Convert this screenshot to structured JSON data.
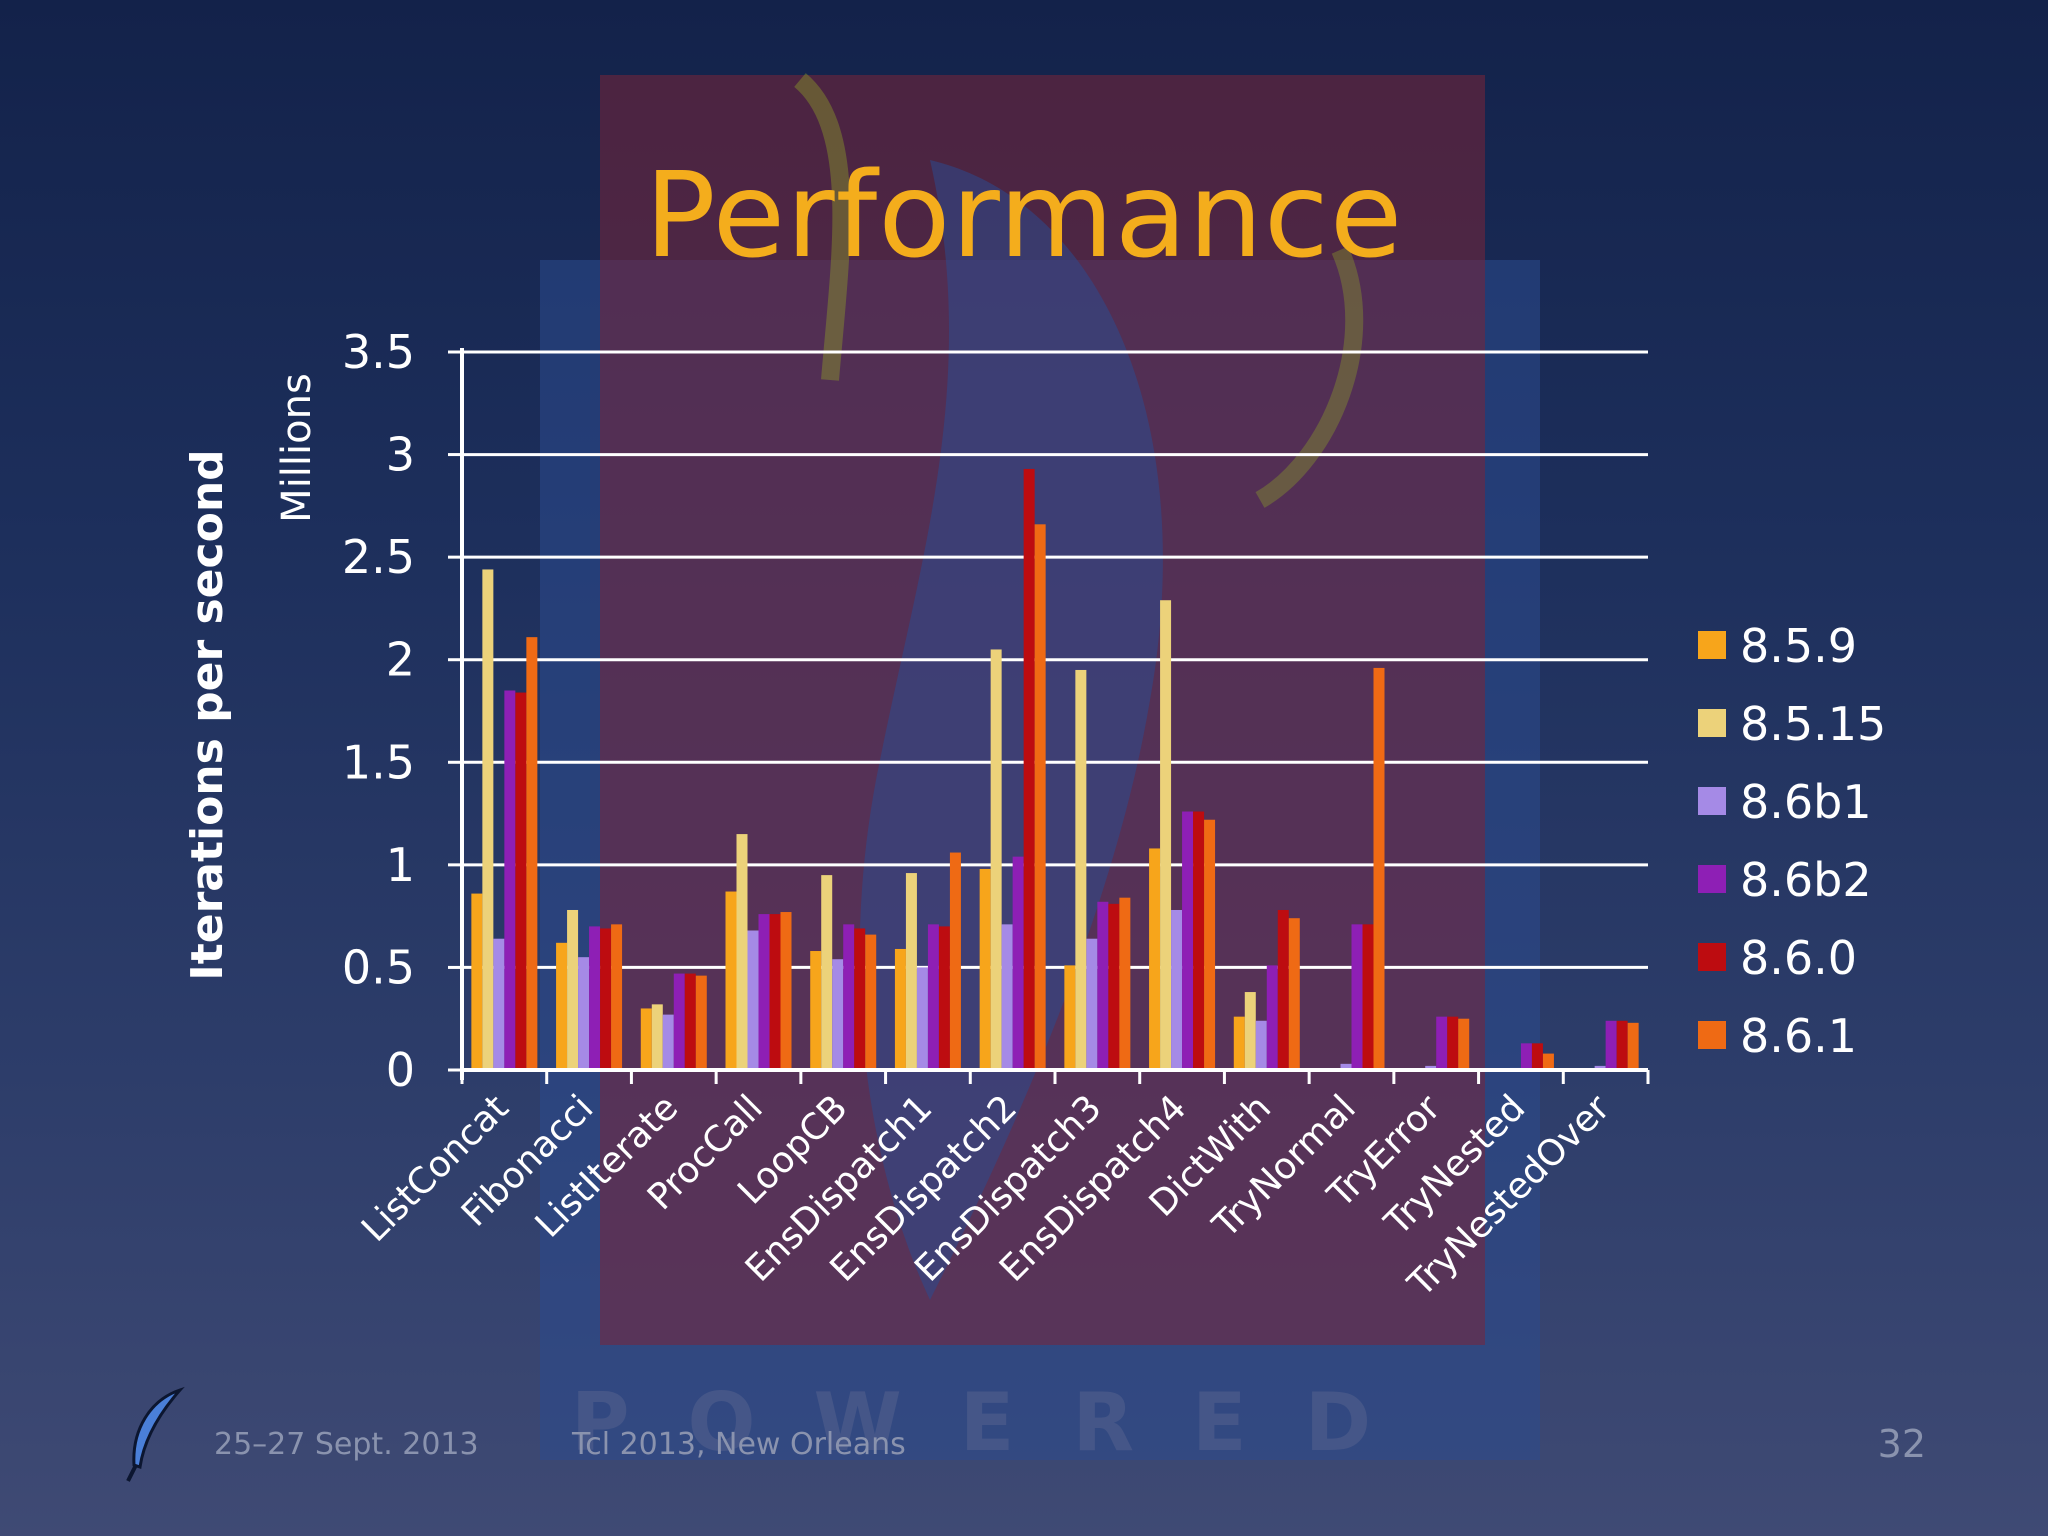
{
  "slide": {
    "title": "Performance",
    "footer_date": "25–27 Sept. 2013",
    "footer_event": "Tcl 2013, New Orleans",
    "slide_number": "32",
    "watermark_text": "POWERED",
    "icon": "feather-icon"
  },
  "colors": {
    "title": "#f4ad1c",
    "series": [
      "#f7a51b",
      "#ecd27a",
      "#a58ae6",
      "#8e1fb5",
      "#bd0c10",
      "#ef6a14"
    ],
    "gridline": "#ffffff"
  },
  "chart_data": {
    "type": "bar",
    "title": "",
    "xlabel": "",
    "ylabel": "Iterations per second",
    "yunits": "Millions",
    "ylim": [
      0,
      3.5
    ],
    "yticks": [
      "0",
      "0.5",
      "1",
      "1.5",
      "2",
      "2.5",
      "3",
      "3.5"
    ],
    "grid": true,
    "legend_position": "right",
    "categories": [
      "ListConcat",
      "Fibonacci",
      "ListIterate",
      "ProcCall",
      "LoopCB",
      "EnsDispatch1",
      "EnsDispatch2",
      "EnsDispatch3",
      "EnsDispatch4",
      "DictWith",
      "TryNormal",
      "TryError",
      "TryNested",
      "TryNestedOver"
    ],
    "series": [
      {
        "name": "8.5.9",
        "values": [
          0.86,
          0.62,
          0.3,
          0.87,
          0.58,
          0.59,
          0.98,
          0.51,
          1.08,
          0.26,
          0,
          0,
          0,
          0
        ]
      },
      {
        "name": "8.5.15",
        "values": [
          2.44,
          0.78,
          0.32,
          1.15,
          0.95,
          0.96,
          2.05,
          1.95,
          2.29,
          0.38,
          0,
          0,
          0,
          0
        ]
      },
      {
        "name": "8.6b1",
        "values": [
          0.64,
          0.55,
          0.27,
          0.68,
          0.54,
          0.5,
          0.71,
          0.64,
          0.78,
          0.24,
          0.03,
          0.02,
          0.01,
          0.02
        ]
      },
      {
        "name": "8.6b2",
        "values": [
          1.85,
          0.7,
          0.47,
          0.76,
          0.71,
          0.71,
          1.04,
          0.82,
          1.26,
          0.51,
          0.71,
          0.26,
          0.13,
          0.24
        ]
      },
      {
        "name": "8.6.0",
        "values": [
          1.84,
          0.69,
          0.47,
          0.76,
          0.69,
          0.7,
          2.93,
          0.81,
          1.26,
          0.78,
          0.71,
          0.26,
          0.13,
          0.24
        ]
      },
      {
        "name": "8.6.1",
        "values": [
          2.11,
          0.71,
          0.46,
          0.77,
          0.66,
          1.06,
          2.66,
          0.84,
          1.22,
          0.74,
          1.96,
          0.25,
          0.08,
          0.23
        ]
      }
    ]
  }
}
